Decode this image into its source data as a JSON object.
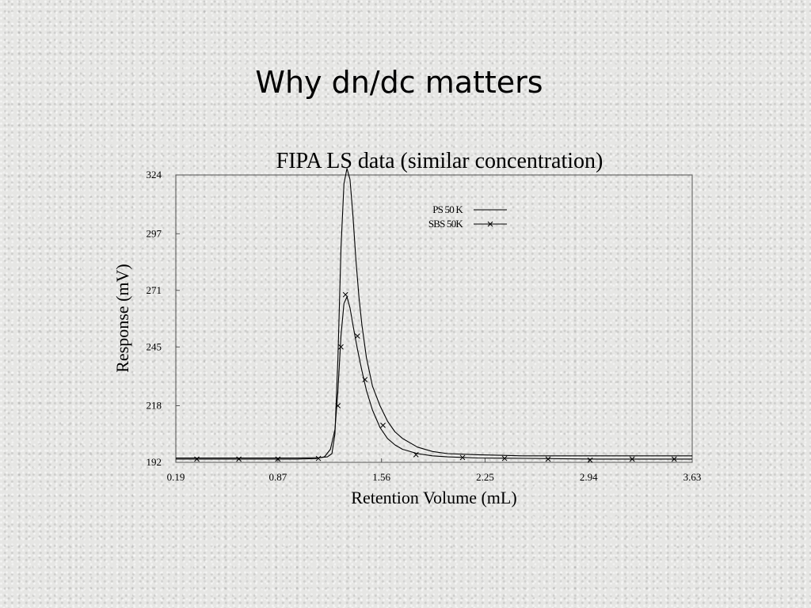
{
  "slide": {
    "title": "Why dn/dc matters"
  },
  "chart_data": {
    "type": "line",
    "title": "FIPA LS data (similar concentration)",
    "xlabel": "Retention Volume (mL)",
    "ylabel": "Response (mV)",
    "xlim": [
      0.19,
      3.63
    ],
    "ylim": [
      192,
      324
    ],
    "xticks": [
      "0.19",
      "0.87",
      "1.56",
      "2.25",
      "2.94",
      "3.63"
    ],
    "yticks": [
      "192",
      "218",
      "245",
      "271",
      "297",
      "324"
    ],
    "grid": false,
    "legend_position": "top-right",
    "series": [
      {
        "name": "PS 50 K",
        "marker": "none",
        "x": [
          0.19,
          0.5,
          0.8,
          1.0,
          1.15,
          1.2,
          1.23,
          1.25,
          1.27,
          1.29,
          1.31,
          1.33,
          1.35,
          1.37,
          1.39,
          1.41,
          1.43,
          1.46,
          1.5,
          1.55,
          1.6,
          1.65,
          1.7,
          1.8,
          1.9,
          2.0,
          2.2,
          2.5,
          3.0,
          3.63
        ],
        "y": [
          194,
          194,
          194,
          194,
          194.2,
          194.5,
          196,
          205,
          240,
          290,
          320,
          327,
          322,
          305,
          285,
          268,
          255,
          240,
          227,
          218,
          211,
          206,
          203,
          199,
          197,
          196,
          195.5,
          195,
          195,
          195
        ]
      },
      {
        "name": "SBS 50K",
        "marker": "x",
        "x": [
          0.19,
          0.5,
          0.8,
          1.0,
          1.12,
          1.18,
          1.22,
          1.25,
          1.27,
          1.29,
          1.31,
          1.33,
          1.35,
          1.37,
          1.4,
          1.43,
          1.46,
          1.5,
          1.55,
          1.6,
          1.65,
          1.7,
          1.8,
          1.9,
          2.0,
          2.2,
          2.5,
          3.0,
          3.63
        ],
        "y": [
          193.5,
          193.5,
          193.5,
          193.5,
          193.7,
          194.5,
          198,
          207,
          225,
          250,
          265,
          268,
          263,
          255,
          244,
          234,
          225,
          216,
          208,
          203,
          200,
          198,
          196,
          195,
          194.5,
          194,
          193.8,
          193.5,
          193.5
        ],
        "marker_x": [
          0.33,
          0.61,
          0.87,
          1.14,
          1.27,
          1.29,
          1.32,
          1.4,
          1.45,
          1.57,
          1.79,
          2.1,
          2.38,
          2.67,
          2.95,
          3.23,
          3.51
        ],
        "marker_y": [
          193.5,
          193.5,
          193.5,
          193.8,
          218,
          245,
          269,
          250,
          230,
          209,
          195.5,
          194.2,
          193.8,
          193.5,
          193,
          193.5,
          193.5
        ]
      }
    ]
  }
}
